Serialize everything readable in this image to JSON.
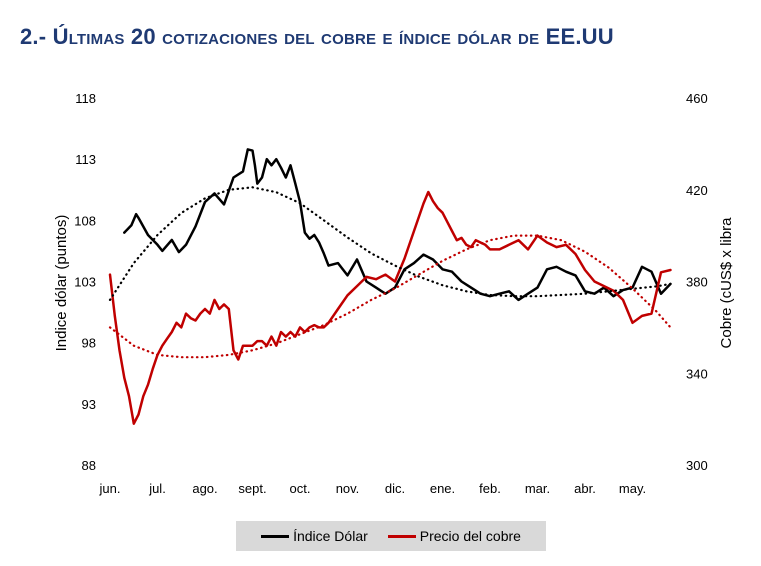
{
  "page": {
    "title_prefix": "2.- Ú",
    "title_rest": "ltimas 20 cotizaciones del cobre e índice dólar de EE.UU"
  },
  "chart_data": {
    "type": "line",
    "x_categories": [
      "jun.",
      "jul.",
      "ago.",
      "sept.",
      "oct.",
      "nov.",
      "dic.",
      "ene.",
      "feb.",
      "mar.",
      "abr.",
      "may."
    ],
    "left_axis": {
      "label": "Indice dólar (puntos)",
      "min": 88,
      "max": 118,
      "ticks": [
        "118",
        "113",
        "108",
        "103",
        "98",
        "93",
        "88"
      ]
    },
    "right_axis": {
      "label": "Cobre (cUS$ x libra",
      "min": 300,
      "max": 460,
      "ticks": [
        "460",
        "420",
        "380",
        "340",
        "300"
      ]
    },
    "grid": false,
    "legend_position": "bottom",
    "series": [
      {
        "name": "Índice Dólar",
        "axis": "left",
        "color": "#000000",
        "x": [
          0.3,
          0.45,
          0.55,
          0.6,
          0.8,
          1.0,
          1.1,
          1.3,
          1.45,
          1.6,
          1.8,
          2.0,
          2.2,
          2.4,
          2.6,
          2.8,
          2.9,
          3.0,
          3.05,
          3.1,
          3.2,
          3.3,
          3.4,
          3.5,
          3.6,
          3.7,
          3.8,
          3.9,
          4.0,
          4.1,
          4.2,
          4.3,
          4.4,
          4.5,
          4.6,
          4.8,
          5.0,
          5.2,
          5.4,
          5.6,
          5.8,
          6.0,
          6.2,
          6.4,
          6.6,
          6.8,
          7.0,
          7.2,
          7.4,
          7.6,
          7.8,
          8.0,
          8.2,
          8.4,
          8.6,
          8.8,
          9.0,
          9.2,
          9.4,
          9.6,
          9.8,
          10.0,
          10.2,
          10.4,
          10.6,
          10.8,
          11.0,
          11.2,
          11.4,
          11.6,
          11.8
        ],
        "values": [
          107,
          107.6,
          108.5,
          108.2,
          106.8,
          106.0,
          105.5,
          106.4,
          105.4,
          106.0,
          107.5,
          109.5,
          110.2,
          109.3,
          111.5,
          112.0,
          113.8,
          113.7,
          112.5,
          111.0,
          111.5,
          113.0,
          112.5,
          113.0,
          112.3,
          111.5,
          112.5,
          111.0,
          109.5,
          107.0,
          106.5,
          106.8,
          106.2,
          105.3,
          104.3,
          104.5,
          103.5,
          104.8,
          103.0,
          102.5,
          102.0,
          102.5,
          104.0,
          104.5,
          105.2,
          104.8,
          104.0,
          103.8,
          103.0,
          102.5,
          102.0,
          101.8,
          102.0,
          102.2,
          101.5,
          102.0,
          102.5,
          104.0,
          104.2,
          103.8,
          103.5,
          102.2,
          102.0,
          102.5,
          101.8,
          102.3,
          102.5,
          104.2,
          103.8,
          102.0,
          102.8
        ]
      },
      {
        "name": "Precio del cobre",
        "axis": "right",
        "color": "#c00000",
        "x": [
          0.0,
          0.1,
          0.2,
          0.3,
          0.4,
          0.5,
          0.6,
          0.7,
          0.8,
          0.9,
          1.0,
          1.1,
          1.2,
          1.3,
          1.4,
          1.5,
          1.6,
          1.7,
          1.8,
          1.9,
          2.0,
          2.1,
          2.2,
          2.3,
          2.4,
          2.5,
          2.6,
          2.7,
          2.8,
          2.9,
          3.0,
          3.1,
          3.2,
          3.3,
          3.4,
          3.5,
          3.6,
          3.7,
          3.8,
          3.9,
          4.0,
          4.1,
          4.2,
          4.3,
          4.4,
          4.5,
          4.6,
          4.8,
          5.0,
          5.2,
          5.4,
          5.6,
          5.8,
          6.0,
          6.2,
          6.4,
          6.6,
          6.7,
          6.8,
          6.9,
          7.0,
          7.1,
          7.2,
          7.3,
          7.4,
          7.5,
          7.6,
          7.7,
          7.8,
          7.9,
          8.0,
          8.2,
          8.4,
          8.6,
          8.8,
          9.0,
          9.2,
          9.4,
          9.6,
          9.8,
          10.0,
          10.2,
          10.4,
          10.6,
          10.8,
          11.0,
          11.2,
          11.4,
          11.6,
          11.8
        ],
        "values": [
          383,
          365,
          350,
          338,
          330,
          318,
          322,
          330,
          335,
          342,
          348,
          352,
          355,
          358,
          362,
          360,
          366,
          364,
          363,
          366,
          368,
          366,
          372,
          368,
          370,
          368,
          350,
          346,
          352,
          352,
          352,
          354,
          354,
          352,
          356,
          352,
          358,
          356,
          358,
          356,
          360,
          358,
          360,
          361,
          360,
          360,
          362,
          368,
          374,
          378,
          382,
          381,
          383,
          380,
          390,
          402,
          414,
          419,
          415,
          412,
          410,
          406,
          402,
          398,
          399,
          396,
          395,
          398,
          397,
          396,
          394,
          394,
          396,
          398,
          394,
          400,
          397,
          395,
          396,
          392,
          385,
          380,
          378,
          376,
          372,
          362,
          365,
          366,
          384,
          385
        ]
      },
      {
        "name": "trend-dolar",
        "axis": "left",
        "style": "dotted",
        "color": "#000000",
        "x": [
          0,
          0.5,
          1,
          1.5,
          2,
          2.5,
          3,
          3.5,
          4,
          4.5,
          5,
          5.5,
          6,
          6.5,
          7,
          7.5,
          8,
          8.5,
          9,
          9.5,
          10,
          10.5,
          11,
          11.5,
          11.8
        ],
        "values": [
          101.5,
          104.5,
          106.8,
          108.6,
          109.8,
          110.5,
          110.7,
          110.3,
          109.4,
          108.0,
          106.6,
          105.3,
          104.3,
          103.4,
          102.7,
          102.2,
          101.9,
          101.8,
          101.8,
          101.9,
          102.0,
          102.2,
          102.4,
          102.6,
          102.8
        ]
      },
      {
        "name": "trend-cobre",
        "axis": "right",
        "style": "dotted",
        "color": "#c00000",
        "x": [
          0,
          0.5,
          1,
          1.5,
          2,
          2.5,
          3,
          3.5,
          4,
          4.5,
          5,
          5.5,
          6,
          6.5,
          7,
          7.5,
          8,
          8.5,
          9,
          9.5,
          10,
          10.5,
          11,
          11.5,
          11.8
        ],
        "values": [
          360,
          352,
          348,
          347,
          347,
          348,
          350,
          353,
          357,
          361,
          366,
          372,
          377,
          383,
          389,
          394,
          398,
          400,
          400,
          398,
          393,
          386,
          377,
          367,
          360
        ]
      }
    ]
  },
  "legend": {
    "dolar_label": "Índice Dólar",
    "cobre_label": "Precio del cobre",
    "dolar_color": "#000000",
    "cobre_color": "#c00000"
  }
}
